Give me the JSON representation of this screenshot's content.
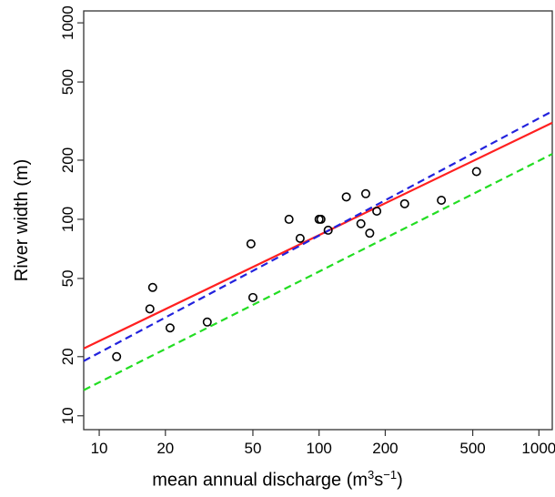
{
  "chart_data": {
    "type": "scatter",
    "title": "",
    "xlabel": {
      "prefix": "mean annual discharge (m",
      "sup1": "3",
      "mid": "s",
      "sup2": "−1",
      "suffix": ")"
    },
    "ylabel": "River width (m)",
    "xscale": "log",
    "yscale": "log",
    "xlim": [
      8.5,
      1150
    ],
    "ylim": [
      8.5,
      1150
    ],
    "xticks": [
      10,
      20,
      50,
      100,
      200,
      500,
      1000
    ],
    "xtick_labels": [
      "10",
      "20",
      "50",
      "100",
      "200",
      "500",
      "1000"
    ],
    "yticks": [
      10,
      20,
      50,
      100,
      200,
      500,
      1000
    ],
    "ytick_labels": [
      "10",
      "20",
      "50",
      "100",
      "200",
      "500",
      "1000"
    ],
    "grid": false,
    "points": {
      "x": [
        12,
        17,
        17.5,
        21,
        31,
        49,
        50,
        73,
        82,
        100,
        102,
        110,
        133,
        155,
        163,
        170,
        183,
        245,
        360,
        520
      ],
      "y": [
        20,
        35,
        45,
        28,
        30,
        75,
        40,
        100,
        80,
        100,
        100,
        88,
        130,
        95,
        135,
        85,
        110,
        120,
        125,
        175
      ]
    },
    "series": [
      {
        "style": "solid",
        "color": "#ff2020",
        "x": [
          8.5,
          1150
        ],
        "y": [
          22.0,
          310
        ]
      },
      {
        "style": "dashed",
        "color": "#2222dd",
        "x": [
          8.5,
          1150
        ],
        "y": [
          19.0,
          355
        ]
      },
      {
        "style": "dashed",
        "color": "#22dd22",
        "x": [
          8.5,
          1150
        ],
        "y": [
          13.5,
          215
        ]
      }
    ]
  }
}
